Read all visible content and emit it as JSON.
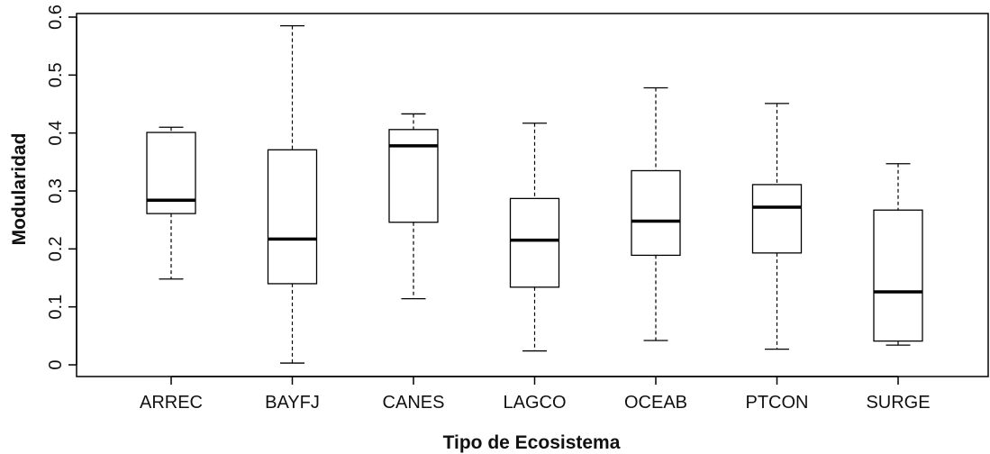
{
  "chart_data": {
    "type": "boxplot",
    "xlabel": "Tipo de Ecosistema",
    "ylabel": "Modularidad",
    "ylim": [
      -0.015,
      0.61
    ],
    "yticks": [
      0,
      0.1,
      0.2,
      0.3,
      0.4,
      0.5,
      0.6
    ],
    "ytick_labels": [
      "0",
      "0.1",
      "0.2",
      "0.3",
      "0.4",
      "0.5",
      "0.6"
    ],
    "grid": false,
    "categories": [
      "ARREC",
      "BAYFJ",
      "CANES",
      "LAGCO",
      "OCEAB",
      "PTCON",
      "SURGE"
    ],
    "boxes": [
      {
        "category": "ARREC",
        "min": 0.148,
        "q1": 0.261,
        "median": 0.284,
        "q3": 0.401,
        "max": 0.41
      },
      {
        "category": "BAYFJ",
        "min": 0.003,
        "q1": 0.14,
        "median": 0.217,
        "q3": 0.371,
        "max": 0.585
      },
      {
        "category": "CANES",
        "min": 0.114,
        "q1": 0.246,
        "median": 0.378,
        "q3": 0.406,
        "max": 0.433
      },
      {
        "category": "LAGCO",
        "min": 0.024,
        "q1": 0.134,
        "median": 0.215,
        "q3": 0.287,
        "max": 0.417
      },
      {
        "category": "OCEAB",
        "min": 0.042,
        "q1": 0.189,
        "median": 0.248,
        "q3": 0.335,
        "max": 0.478
      },
      {
        "category": "PTCON",
        "min": 0.027,
        "q1": 0.193,
        "median": 0.272,
        "q3": 0.311,
        "max": 0.451
      },
      {
        "category": "SURGE",
        "min": 0.034,
        "q1": 0.041,
        "median": 0.126,
        "q3": 0.267,
        "max": 0.347
      }
    ],
    "colors": {
      "box_fill": "#ffffff",
      "stroke": "#000000",
      "median": "#000000",
      "background": "#ffffff"
    }
  }
}
